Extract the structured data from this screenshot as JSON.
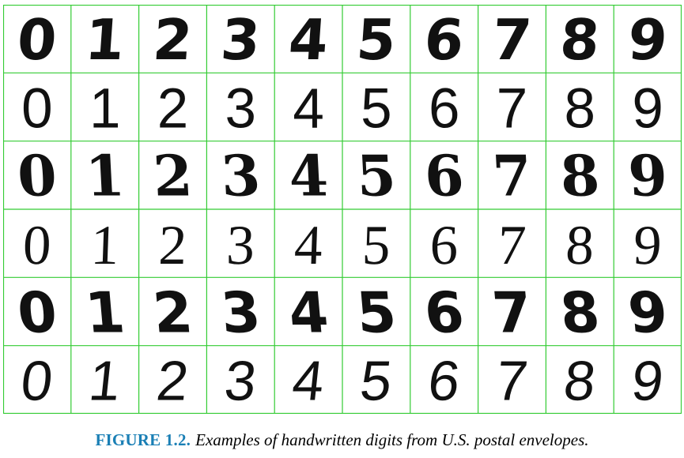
{
  "figure": {
    "label": "FIGURE 1.2.",
    "caption": "Examples of handwritten digits from U.S. postal envelopes.",
    "grid_color": "#33cc33",
    "ink_color": "#111111",
    "rows": [
      [
        "0",
        "1",
        "2",
        "3",
        "4",
        "5",
        "6",
        "7",
        "8",
        "9"
      ],
      [
        "0",
        "1",
        "2",
        "3",
        "4",
        "5",
        "6",
        "7",
        "8",
        "9"
      ],
      [
        "0",
        "1",
        "2",
        "3",
        "4",
        "5",
        "6",
        "7",
        "8",
        "9"
      ],
      [
        "0",
        "1",
        "2",
        "3",
        "4",
        "5",
        "6",
        "7",
        "8",
        "9"
      ],
      [
        "0",
        "1",
        "2",
        "3",
        "4",
        "5",
        "6",
        "7",
        "8",
        "9"
      ],
      [
        "0",
        "1",
        "2",
        "3",
        "4",
        "5",
        "6",
        "7",
        "8",
        "9"
      ]
    ]
  }
}
